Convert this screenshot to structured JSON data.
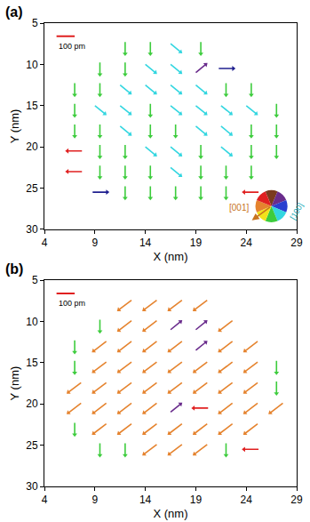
{
  "chart_data": [
    {
      "type": "quiver",
      "title": "(a)",
      "x_label": "X (nm)",
      "y_label": "Y (nm)",
      "xlim": [
        4,
        29
      ],
      "ylim": [
        30,
        5
      ],
      "xticks": [
        4,
        9,
        14,
        19,
        24,
        29
      ],
      "yticks": [
        5,
        10,
        15,
        20,
        25,
        30
      ],
      "scale_bar": {
        "value": 100,
        "label": "100 pm"
      },
      "x": [
        12,
        14.5,
        17,
        19.5,
        9.5,
        12,
        14.5,
        17,
        19.5,
        22,
        7,
        9.5,
        12,
        14.5,
        17,
        19.5,
        22,
        24.5,
        7,
        9.5,
        12,
        14.5,
        17,
        19.5,
        22,
        24.5,
        27,
        7,
        9.5,
        12,
        14.5,
        17,
        19.5,
        22,
        24.5,
        27,
        7,
        9.5,
        12,
        14.5,
        17,
        19.5,
        22,
        24.5,
        27,
        7,
        9.5,
        12,
        14.5,
        17,
        19.5,
        22,
        24.5,
        9.5,
        12,
        14.5,
        17,
        19.5,
        22,
        24.5
      ],
      "y": [
        8,
        8,
        8,
        8,
        10.5,
        10.5,
        10.5,
        10.5,
        10.5,
        10.5,
        13,
        13,
        13,
        13,
        13,
        13,
        13,
        13,
        15.5,
        15.5,
        15.5,
        15.5,
        15.5,
        15.5,
        15.5,
        15.5,
        15.5,
        18,
        18,
        18,
        18,
        18,
        18,
        18,
        18,
        18,
        20.5,
        20.5,
        20.5,
        20.5,
        20.5,
        20.5,
        20.5,
        20.5,
        20.5,
        23,
        23,
        23,
        23,
        23,
        23,
        23,
        23,
        25.5,
        25.5,
        25.5,
        25.5,
        25.5,
        25.5,
        25.5
      ],
      "u": [
        0,
        0,
        55,
        0,
        0,
        0,
        55,
        55,
        55,
        80,
        0,
        0,
        55,
        55,
        55,
        55,
        0,
        0,
        0,
        55,
        55,
        0,
        55,
        55,
        55,
        55,
        0,
        0,
        0,
        55,
        0,
        0,
        55,
        55,
        0,
        0,
        -80,
        0,
        0,
        55,
        55,
        0,
        55,
        0,
        0,
        -80,
        0,
        0,
        0,
        55,
        0,
        0,
        0,
        80,
        0,
        0,
        0,
        0,
        0,
        -80
      ],
      "v": [
        80,
        80,
        55,
        80,
        80,
        80,
        55,
        55,
        -55,
        0,
        80,
        80,
        55,
        55,
        55,
        55,
        80,
        80,
        80,
        55,
        55,
        80,
        55,
        55,
        55,
        55,
        80,
        80,
        80,
        55,
        80,
        80,
        55,
        55,
        80,
        80,
        0,
        80,
        80,
        55,
        55,
        80,
        55,
        80,
        80,
        0,
        80,
        80,
        80,
        55,
        80,
        80,
        80,
        0,
        80,
        80,
        80,
        80,
        80,
        0
      ],
      "colors": [
        "#3dcc3d",
        "#3dcc3d",
        "#33d6e0",
        "#3dcc3d",
        "#3dcc3d",
        "#3dcc3d",
        "#33d6e0",
        "#33d6e0",
        "#6a2c8c",
        "#1f1f8f",
        "#3dcc3d",
        "#3dcc3d",
        "#33d6e0",
        "#33d6e0",
        "#33d6e0",
        "#33d6e0",
        "#3dcc3d",
        "#3dcc3d",
        "#3dcc3d",
        "#33d6e0",
        "#33d6e0",
        "#3dcc3d",
        "#33d6e0",
        "#33d6e0",
        "#33d6e0",
        "#33d6e0",
        "#3dcc3d",
        "#3dcc3d",
        "#3dcc3d",
        "#33d6e0",
        "#3dcc3d",
        "#3dcc3d",
        "#33d6e0",
        "#33d6e0",
        "#3dcc3d",
        "#3dcc3d",
        "#e02020",
        "#3dcc3d",
        "#3dcc3d",
        "#33d6e0",
        "#33d6e0",
        "#3dcc3d",
        "#33d6e0",
        "#3dcc3d",
        "#3dcc3d",
        "#e02020",
        "#3dcc3d",
        "#3dcc3d",
        "#3dcc3d",
        "#33d6e0",
        "#3dcc3d",
        "#3dcc3d",
        "#3dcc3d",
        "#1f1f8f",
        "#3dcc3d",
        "#3dcc3d",
        "#3dcc3d",
        "#3dcc3d",
        "#3dcc3d",
        "#e02020"
      ],
      "color_wheel": {
        "colors": [
          "#7a3b1e",
          "#6a2c8c",
          "#2a3fd0",
          "#33d6e0",
          "#3dcc3d",
          "#f2e21b",
          "#e5832e",
          "#e02020"
        ],
        "labels": [
          {
            "text": "[001]",
            "color": "#c8741e"
          },
          {
            "text": "[100]",
            "color": "#22aab8"
          }
        ]
      }
    },
    {
      "type": "quiver",
      "title": "(b)",
      "x_label": "X (nm)",
      "y_label": "Y (nm)",
      "xlim": [
        4,
        29
      ],
      "ylim": [
        30,
        5
      ],
      "xticks": [
        4,
        9,
        14,
        19,
        24,
        29
      ],
      "yticks": [
        5,
        10,
        15,
        20,
        25,
        30
      ],
      "scale_bar": {
        "value": 100,
        "label": "100 pm"
      },
      "x": [
        12,
        14.5,
        17,
        19.5,
        9.5,
        12,
        14.5,
        17,
        19.5,
        22,
        7,
        9.5,
        12,
        14.5,
        17,
        19.5,
        22,
        24.5,
        7,
        9.5,
        12,
        14.5,
        17,
        19.5,
        22,
        24.5,
        27,
        7,
        9.5,
        12,
        14.5,
        17,
        19.5,
        22,
        24.5,
        27,
        7,
        9.5,
        12,
        14.5,
        17,
        19.5,
        22,
        24.5,
        27,
        7,
        9.5,
        12,
        14.5,
        17,
        19.5,
        22,
        24.5,
        9.5,
        12,
        14.5,
        17,
        19.5,
        22,
        24.5
      ],
      "y": [
        8,
        8,
        8,
        8,
        10.5,
        10.5,
        10.5,
        10.5,
        10.5,
        10.5,
        13,
        13,
        13,
        13,
        13,
        13,
        13,
        13,
        15.5,
        15.5,
        15.5,
        15.5,
        15.5,
        15.5,
        15.5,
        15.5,
        15.5,
        18,
        18,
        18,
        18,
        18,
        18,
        18,
        18,
        18,
        20.5,
        20.5,
        20.5,
        20.5,
        20.5,
        20.5,
        20.5,
        20.5,
        20.5,
        23,
        23,
        23,
        23,
        23,
        23,
        23,
        23,
        25.5,
        25.5,
        25.5,
        25.5,
        25.5,
        25.5,
        25.5
      ],
      "u": [
        -70,
        -70,
        -70,
        -70,
        0,
        -70,
        -70,
        55,
        55,
        -70,
        0,
        -70,
        -70,
        -70,
        -70,
        55,
        -70,
        -70,
        0,
        -70,
        -70,
        -70,
        -70,
        -70,
        -70,
        -70,
        0,
        -70,
        -70,
        -70,
        -70,
        -70,
        -70,
        -70,
        -70,
        0,
        -70,
        -70,
        -70,
        -70,
        55,
        -80,
        -70,
        -70,
        -70,
        0,
        -70,
        -70,
        -70,
        -70,
        -70,
        -70,
        -70,
        0,
        0,
        -70,
        -70,
        -70,
        0,
        -80
      ],
      "v": [
        65,
        65,
        65,
        65,
        80,
        65,
        65,
        -55,
        -55,
        65,
        80,
        65,
        65,
        65,
        65,
        -55,
        65,
        65,
        80,
        65,
        65,
        65,
        65,
        65,
        65,
        65,
        80,
        65,
        65,
        65,
        65,
        65,
        65,
        65,
        65,
        80,
        65,
        65,
        65,
        65,
        -55,
        0,
        65,
        65,
        65,
        80,
        65,
        65,
        65,
        65,
        65,
        65,
        65,
        80,
        80,
        65,
        65,
        65,
        80,
        0
      ],
      "colors": [
        "#e5832e",
        "#e5832e",
        "#e5832e",
        "#e5832e",
        "#3dcc3d",
        "#e5832e",
        "#e5832e",
        "#6a2c8c",
        "#6a2c8c",
        "#e5832e",
        "#3dcc3d",
        "#e5832e",
        "#e5832e",
        "#e5832e",
        "#e5832e",
        "#6a2c8c",
        "#e5832e",
        "#e5832e",
        "#3dcc3d",
        "#e5832e",
        "#e5832e",
        "#e5832e",
        "#e5832e",
        "#e5832e",
        "#e5832e",
        "#e5832e",
        "#3dcc3d",
        "#e5832e",
        "#e5832e",
        "#e5832e",
        "#e5832e",
        "#e5832e",
        "#e5832e",
        "#e5832e",
        "#e5832e",
        "#3dcc3d",
        "#e5832e",
        "#e5832e",
        "#e5832e",
        "#e5832e",
        "#6a2c8c",
        "#e02020",
        "#e5832e",
        "#e5832e",
        "#e5832e",
        "#3dcc3d",
        "#e5832e",
        "#e5832e",
        "#e5832e",
        "#e5832e",
        "#e5832e",
        "#e5832e",
        "#e5832e",
        "#3dcc3d",
        "#3dcc3d",
        "#e5832e",
        "#e5832e",
        "#e5832e",
        "#3dcc3d",
        "#e02020"
      ]
    }
  ]
}
